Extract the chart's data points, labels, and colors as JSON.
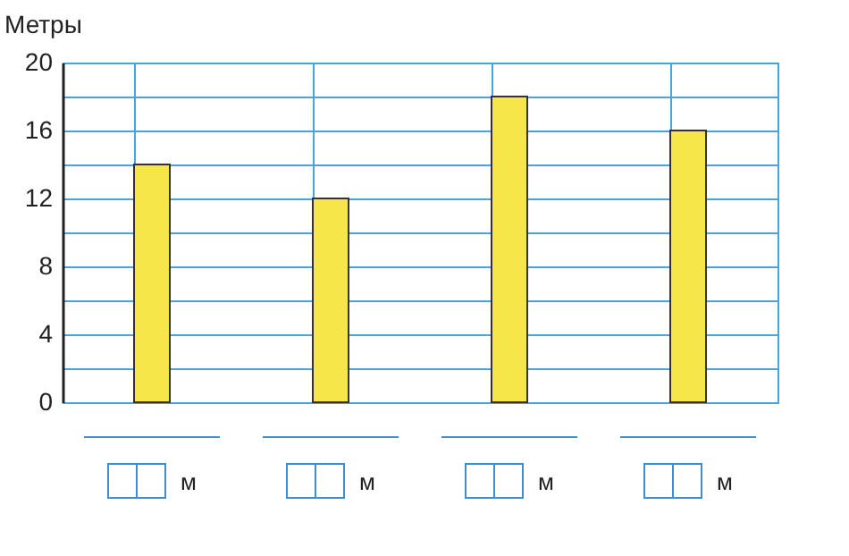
{
  "chart_data": {
    "type": "bar",
    "ylabel": "Метры",
    "categories": [
      null,
      null,
      null,
      null
    ],
    "values": [
      14,
      12,
      18,
      16
    ],
    "color": "#f7e64a",
    "ylim": [
      0,
      20
    ],
    "yticks": [
      0,
      {
        "value": 2,
        "label": null
      },
      4,
      {
        "value": 6,
        "label": null
      },
      8,
      {
        "value": 10,
        "label": null
      },
      12,
      {
        "value": 14,
        "label": null
      },
      16,
      {
        "value": 18,
        "label": null
      },
      20
    ],
    "grid": true,
    "annotations": [
      "м",
      "м",
      "м",
      "м"
    ]
  }
}
